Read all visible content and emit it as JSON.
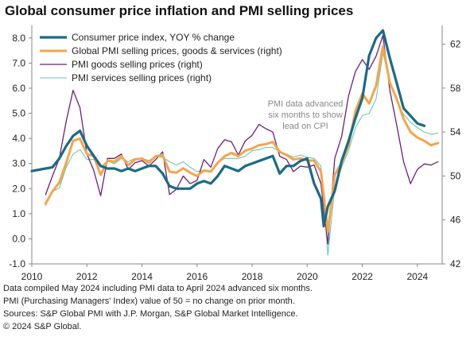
{
  "title": "Global consumer price inflation and PMI selling prices",
  "footer": {
    "line1": "Data compiled May 2024 including PMI data to April 2024 advanced six months.",
    "line2": "PMI (Purchasing Managers' Index) value of 50 = no change on prior month.",
    "line3": "Sources: S&P Global PMI with J.P. Morgan, S&P Global Market Intelligence.",
    "line4": "© 2024 S&P Global."
  },
  "annotation": [
    "PMI data advanced",
    "six months to show",
    "lead on CPI"
  ],
  "colors": {
    "cpi": "#1b6a86",
    "pmi_total": "#f5a54a",
    "pmi_goods": "#6a1f7a",
    "pmi_services": "#6cc6b0",
    "axis": "#888888",
    "annotation": "#888888"
  },
  "chart_data": {
    "type": "line",
    "x_ticks": [
      "2010",
      "2012",
      "2014",
      "2016",
      "2018",
      "2020",
      "2022",
      "2024"
    ],
    "xlim": [
      2010,
      2024.9
    ],
    "y_left": {
      "ticks": [
        "8.0",
        "7.0",
        "6.0",
        "5.0",
        "4.0",
        "3.0",
        "2.0",
        "1.0",
        "0.0",
        "-1.0"
      ],
      "lim": [
        -1,
        8.5
      ]
    },
    "y_right": {
      "ticks": [
        "62",
        "58",
        "54",
        "50",
        "46",
        "42"
      ],
      "lim": [
        42,
        63.7
      ]
    },
    "legend_placement": "top-left",
    "series": [
      {
        "name": "Consumer price index, YOY % change",
        "axis": "left",
        "color_key": "cpi",
        "points": [
          [
            2010.0,
            2.7
          ],
          [
            2010.25,
            2.75
          ],
          [
            2010.5,
            2.8
          ],
          [
            2010.75,
            2.85
          ],
          [
            2011.0,
            3.2
          ],
          [
            2011.25,
            3.7
          ],
          [
            2011.5,
            4.1
          ],
          [
            2011.75,
            4.3
          ],
          [
            2012.0,
            3.7
          ],
          [
            2012.25,
            3.3
          ],
          [
            2012.5,
            2.9
          ],
          [
            2012.75,
            2.8
          ],
          [
            2013.0,
            2.8
          ],
          [
            2013.25,
            2.7
          ],
          [
            2013.5,
            2.8
          ],
          [
            2013.75,
            2.7
          ],
          [
            2014.0,
            2.8
          ],
          [
            2014.25,
            2.9
          ],
          [
            2014.5,
            2.9
          ],
          [
            2014.75,
            2.6
          ],
          [
            2015.0,
            2.1
          ],
          [
            2015.25,
            2.0
          ],
          [
            2015.5,
            2.0
          ],
          [
            2015.75,
            2.0
          ],
          [
            2016.0,
            2.2
          ],
          [
            2016.25,
            2.3
          ],
          [
            2016.5,
            2.2
          ],
          [
            2016.75,
            2.5
          ],
          [
            2017.0,
            2.9
          ],
          [
            2017.25,
            2.8
          ],
          [
            2017.5,
            2.7
          ],
          [
            2017.75,
            2.9
          ],
          [
            2018.0,
            3.0
          ],
          [
            2018.25,
            3.1
          ],
          [
            2018.5,
            3.2
          ],
          [
            2018.75,
            3.3
          ],
          [
            2019.0,
            2.6
          ],
          [
            2019.25,
            2.9
          ],
          [
            2019.5,
            2.9
          ],
          [
            2019.75,
            3.1
          ],
          [
            2020.0,
            3.2
          ],
          [
            2020.25,
            2.2
          ],
          [
            2020.5,
            1.6
          ],
          [
            2020.6,
            0.5
          ],
          [
            2020.75,
            1.3
          ],
          [
            2021.0,
            1.9
          ],
          [
            2021.25,
            3.1
          ],
          [
            2021.5,
            3.9
          ],
          [
            2021.75,
            4.8
          ],
          [
            2022.0,
            5.6
          ],
          [
            2022.25,
            7.3
          ],
          [
            2022.5,
            8.0
          ],
          [
            2022.75,
            8.3
          ],
          [
            2023.0,
            7.2
          ],
          [
            2023.25,
            6.2
          ],
          [
            2023.5,
            5.2
          ],
          [
            2023.75,
            4.9
          ],
          [
            2024.0,
            4.6
          ],
          [
            2024.25,
            4.5
          ]
        ]
      },
      {
        "name": "Global PMI selling prices, goods & services (right)",
        "axis": "right",
        "color_key": "pmi_total",
        "points": [
          [
            2010.5,
            47.5
          ],
          [
            2010.75,
            48.6
          ],
          [
            2011.0,
            49.4
          ],
          [
            2011.25,
            51.2
          ],
          [
            2011.5,
            53.2
          ],
          [
            2011.75,
            53.4
          ],
          [
            2012.0,
            52.0
          ],
          [
            2012.25,
            51.8
          ],
          [
            2012.5,
            50.1
          ],
          [
            2012.75,
            51.4
          ],
          [
            2013.0,
            51.3
          ],
          [
            2013.25,
            51.8
          ],
          [
            2013.5,
            51.0
          ],
          [
            2013.75,
            51.5
          ],
          [
            2014.0,
            51.6
          ],
          [
            2014.25,
            51.2
          ],
          [
            2014.5,
            51.8
          ],
          [
            2014.75,
            51.9
          ],
          [
            2015.0,
            50.4
          ],
          [
            2015.25,
            50.3
          ],
          [
            2015.5,
            50.7
          ],
          [
            2015.75,
            50.3
          ],
          [
            2016.0,
            50.0
          ],
          [
            2016.25,
            50.5
          ],
          [
            2016.5,
            50.4
          ],
          [
            2016.75,
            51.2
          ],
          [
            2017.0,
            51.8
          ],
          [
            2017.25,
            52.1
          ],
          [
            2017.5,
            51.8
          ],
          [
            2017.75,
            52.3
          ],
          [
            2018.0,
            52.5
          ],
          [
            2018.25,
            52.8
          ],
          [
            2018.5,
            52.9
          ],
          [
            2018.75,
            53.1
          ],
          [
            2019.0,
            52.2
          ],
          [
            2019.25,
            51.9
          ],
          [
            2019.5,
            51.5
          ],
          [
            2019.75,
            51.6
          ],
          [
            2020.0,
            51.4
          ],
          [
            2020.25,
            51.4
          ],
          [
            2020.5,
            50.4
          ],
          [
            2020.75,
            44.9
          ],
          [
            2021.0,
            50.1
          ],
          [
            2021.25,
            51.2
          ],
          [
            2021.5,
            52.8
          ],
          [
            2021.75,
            55.9
          ],
          [
            2022.0,
            57.5
          ],
          [
            2022.25,
            56.6
          ],
          [
            2022.5,
            58.2
          ],
          [
            2022.75,
            61.8
          ],
          [
            2023.0,
            58.5
          ],
          [
            2023.25,
            57.0
          ],
          [
            2023.5,
            55.2
          ],
          [
            2023.75,
            54.0
          ],
          [
            2024.0,
            53.5
          ],
          [
            2024.25,
            53.2
          ],
          [
            2024.5,
            52.8
          ],
          [
            2024.75,
            53.0
          ]
        ]
      },
      {
        "name": "PMI goods selling prices (right)",
        "axis": "right",
        "color_key": "pmi_goods",
        "points": [
          [
            2010.5,
            48.3
          ],
          [
            2010.75,
            50.0
          ],
          [
            2011.0,
            51.6
          ],
          [
            2011.25,
            55.0
          ],
          [
            2011.5,
            57.8
          ],
          [
            2011.75,
            56.2
          ],
          [
            2012.0,
            52.0
          ],
          [
            2012.25,
            50.5
          ],
          [
            2012.5,
            48.2
          ],
          [
            2012.75,
            51.6
          ],
          [
            2013.0,
            51.6
          ],
          [
            2013.25,
            52.0
          ],
          [
            2013.5,
            50.6
          ],
          [
            2013.75,
            51.2
          ],
          [
            2014.0,
            51.4
          ],
          [
            2014.25,
            50.9
          ],
          [
            2014.5,
            51.5
          ],
          [
            2014.75,
            52.2
          ],
          [
            2015.0,
            48.3
          ],
          [
            2015.25,
            48.8
          ],
          [
            2015.5,
            50.0
          ],
          [
            2015.75,
            49.3
          ],
          [
            2016.0,
            49.6
          ],
          [
            2016.25,
            51.5
          ],
          [
            2016.5,
            50.8
          ],
          [
            2016.75,
            52.5
          ],
          [
            2017.0,
            53.3
          ],
          [
            2017.25,
            53.1
          ],
          [
            2017.5,
            51.9
          ],
          [
            2017.75,
            53.2
          ],
          [
            2018.0,
            53.7
          ],
          [
            2018.25,
            54.7
          ],
          [
            2018.5,
            54.3
          ],
          [
            2018.75,
            54.0
          ],
          [
            2019.0,
            51.8
          ],
          [
            2019.25,
            51.5
          ],
          [
            2019.5,
            50.4
          ],
          [
            2019.75,
            50.9
          ],
          [
            2020.0,
            50.8
          ],
          [
            2020.25,
            51.0
          ],
          [
            2020.5,
            49.3
          ],
          [
            2020.75,
            43.8
          ],
          [
            2021.0,
            51.6
          ],
          [
            2021.25,
            53.6
          ],
          [
            2021.5,
            57.3
          ],
          [
            2021.75,
            59.5
          ],
          [
            2022.0,
            60.6
          ],
          [
            2022.25,
            59.7
          ],
          [
            2022.5,
            60.9
          ],
          [
            2022.75,
            62.8
          ],
          [
            2023.0,
            57.8
          ],
          [
            2023.25,
            54.6
          ],
          [
            2023.5,
            51.3
          ],
          [
            2023.75,
            49.3
          ],
          [
            2024.0,
            50.6
          ],
          [
            2024.25,
            51.1
          ],
          [
            2024.5,
            51.0
          ],
          [
            2024.75,
            51.3
          ]
        ]
      },
      {
        "name": "PMI services selling prices (right)",
        "axis": "right",
        "color_key": "pmi_services",
        "points": [
          [
            2010.5,
            47.3
          ],
          [
            2010.75,
            48.6
          ],
          [
            2011.0,
            48.9
          ],
          [
            2011.25,
            50.8
          ],
          [
            2011.5,
            52.0
          ],
          [
            2011.75,
            52.4
          ],
          [
            2012.0,
            51.5
          ],
          [
            2012.25,
            51.5
          ],
          [
            2012.5,
            50.8
          ],
          [
            2012.75,
            51.4
          ],
          [
            2013.0,
            51.1
          ],
          [
            2013.25,
            51.6
          ],
          [
            2013.5,
            51.3
          ],
          [
            2013.75,
            51.6
          ],
          [
            2014.0,
            51.6
          ],
          [
            2014.25,
            51.4
          ],
          [
            2014.5,
            51.8
          ],
          [
            2014.75,
            51.7
          ],
          [
            2015.0,
            51.3
          ],
          [
            2015.25,
            51.0
          ],
          [
            2015.5,
            51.3
          ],
          [
            2015.75,
            50.8
          ],
          [
            2016.0,
            50.4
          ],
          [
            2016.25,
            50.5
          ],
          [
            2016.5,
            50.4
          ],
          [
            2016.75,
            51.2
          ],
          [
            2017.0,
            51.6
          ],
          [
            2017.25,
            51.6
          ],
          [
            2017.5,
            51.6
          ],
          [
            2017.75,
            51.8
          ],
          [
            2018.0,
            52.3
          ],
          [
            2018.25,
            52.4
          ],
          [
            2018.5,
            52.6
          ],
          [
            2018.75,
            52.6
          ],
          [
            2019.0,
            52.2
          ],
          [
            2019.25,
            52.0
          ],
          [
            2019.5,
            51.7
          ],
          [
            2019.75,
            51.9
          ],
          [
            2020.0,
            51.7
          ],
          [
            2020.25,
            51.6
          ],
          [
            2020.5,
            50.9
          ],
          [
            2020.75,
            42.8
          ],
          [
            2021.0,
            49.0
          ],
          [
            2021.25,
            50.8
          ],
          [
            2021.5,
            52.3
          ],
          [
            2021.75,
            54.4
          ],
          [
            2022.0,
            55.5
          ],
          [
            2022.25,
            55.7
          ],
          [
            2022.5,
            57.0
          ],
          [
            2022.75,
            61.2
          ],
          [
            2023.0,
            58.6
          ],
          [
            2023.25,
            56.8
          ],
          [
            2023.5,
            55.6
          ],
          [
            2023.75,
            54.9
          ],
          [
            2024.0,
            54.4
          ],
          [
            2024.25,
            54.0
          ],
          [
            2024.5,
            53.8
          ],
          [
            2024.75,
            53.9
          ]
        ]
      }
    ]
  }
}
